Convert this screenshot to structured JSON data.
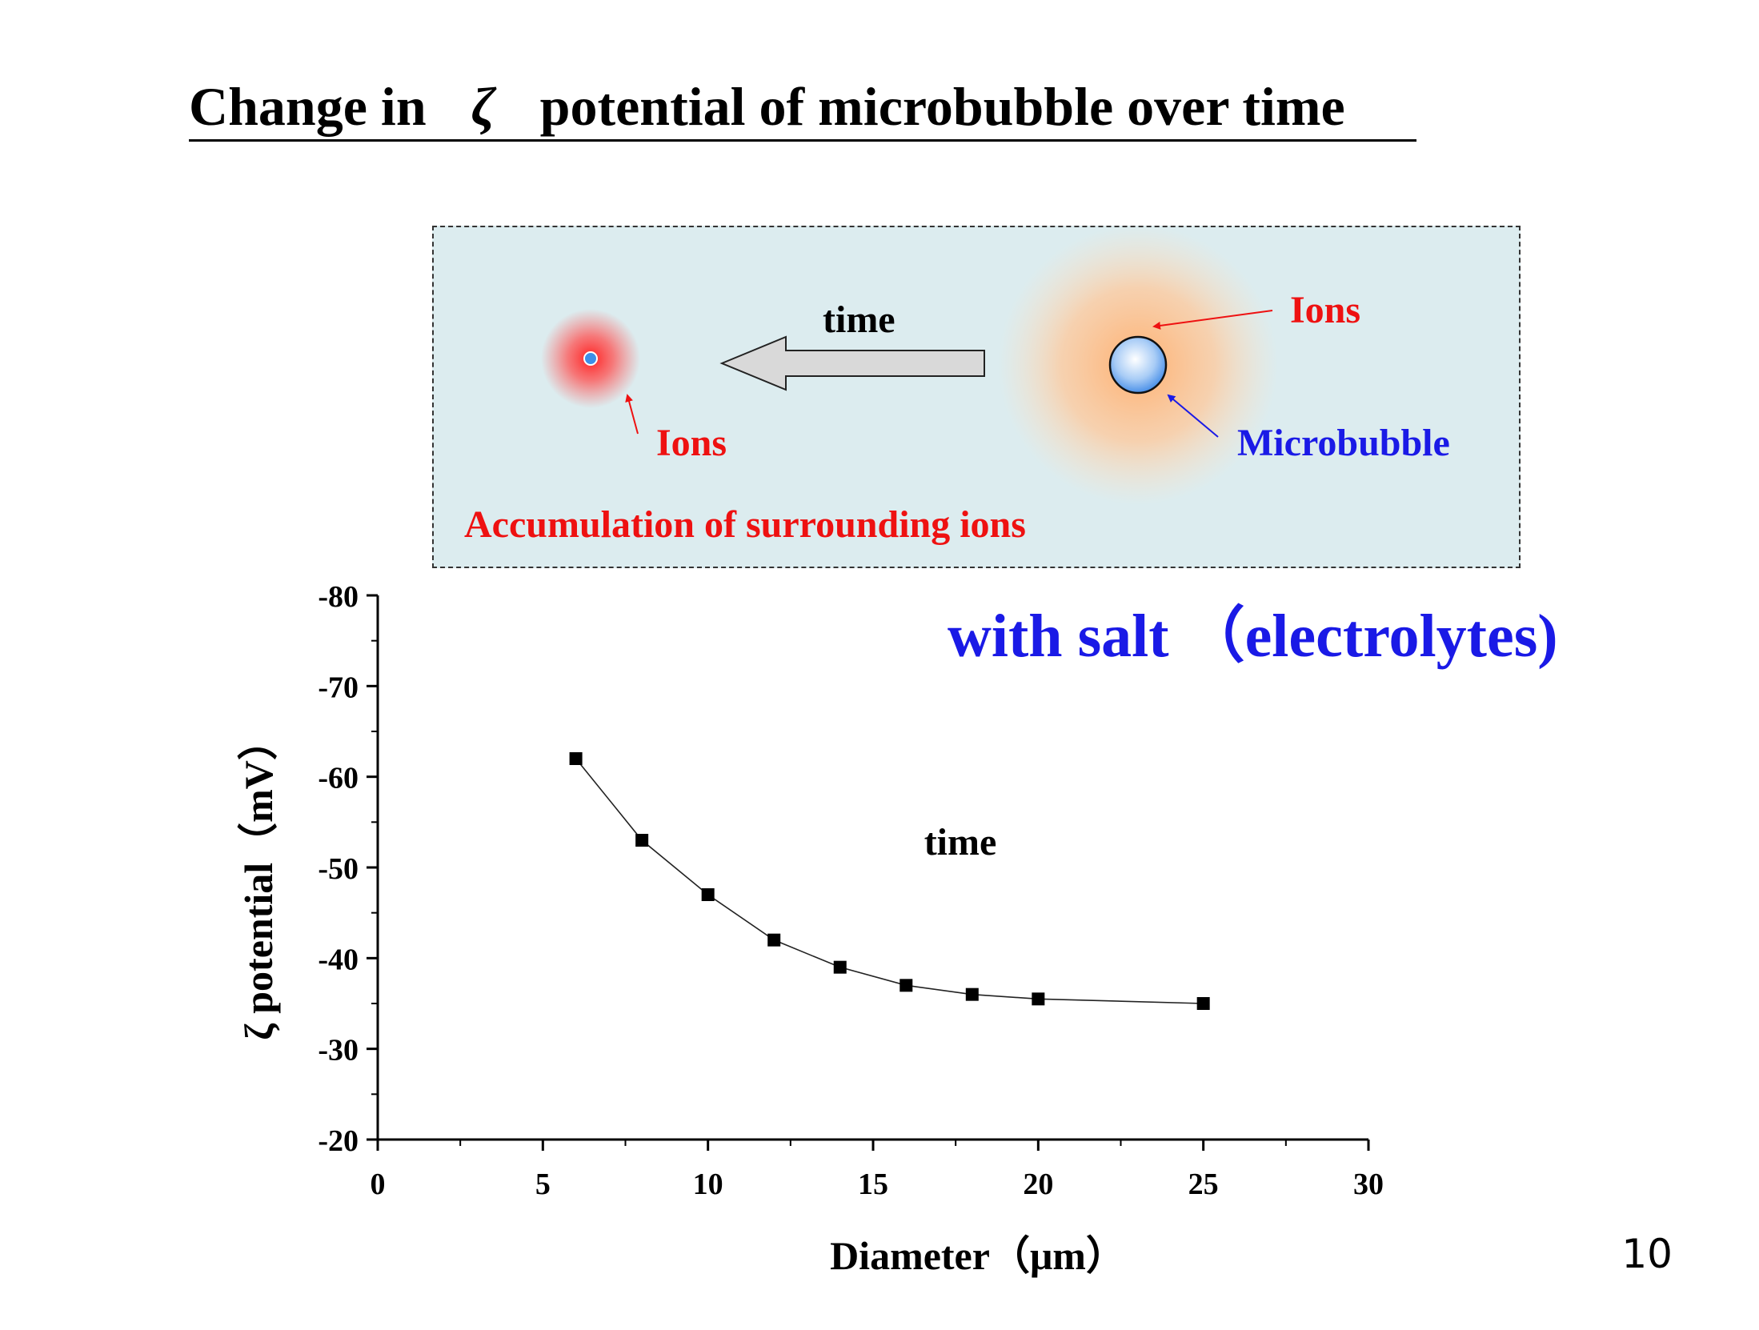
{
  "slide": {
    "title_before_symbol": "Change in",
    "title_symbol": "ζ",
    "title_after_symbol": "potential of microbubble over time",
    "page_number": "10"
  },
  "diagram": {
    "time_label": "time",
    "ions_label_left": "Ions",
    "ions_label_right": "Ions",
    "microbubble_label": "Microbubble",
    "caption": "Accumulation of surrounding ions",
    "colors": {
      "ions": "#ee1111",
      "microbubble": "#1a1ae6",
      "panel_bg": "#dcecef",
      "arrow_fill": "#d9d9d9"
    },
    "icons": [
      "left-arrow-icon",
      "microbubble-icon",
      "ion-cloud-icon"
    ]
  },
  "chart_data": {
    "type": "line",
    "subtitle": "with salt （electrolytes)",
    "annotation": "time",
    "xlabel": "Diameter（μm）",
    "ylabel": "ζ potential（mV）",
    "xlim": [
      0,
      30
    ],
    "ylim": [
      -20,
      -80
    ],
    "x_ticks": [
      0,
      5,
      10,
      15,
      20,
      25,
      30
    ],
    "y_ticks": [
      -20,
      -30,
      -40,
      -50,
      -60,
      -70,
      -80
    ],
    "x": [
      6,
      8,
      10,
      12,
      14,
      16,
      18,
      20,
      25
    ],
    "series": [
      {
        "values": [
          -62,
          -53,
          -47,
          -42,
          -39,
          -37,
          -36,
          -35.5,
          -35
        ]
      }
    ],
    "marker": "square",
    "grid": false,
    "legend": "none"
  }
}
